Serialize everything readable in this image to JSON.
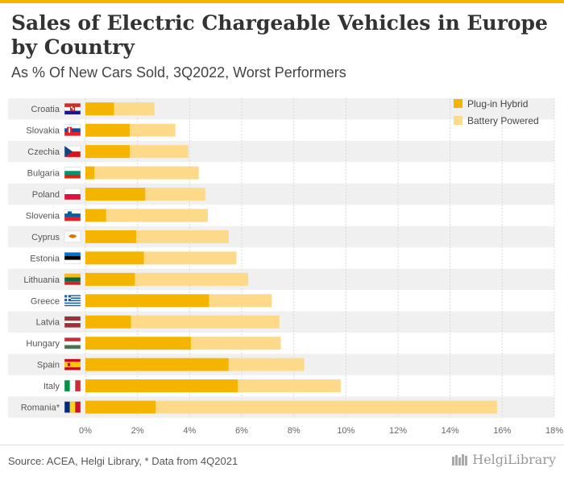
{
  "header": {
    "title": "Sales of Electric Chargeable Vehicles in Europe by Country",
    "subtitle": "As % Of New Cars Sold, 3Q2022, Worst Performers"
  },
  "footer": {
    "source": "Source: ACEA, Helgi Library, * Data from 4Q2021",
    "brand": "HelgiLibrary"
  },
  "colors": {
    "plugin": "#f5b400",
    "battery": "#fdd98a",
    "band": "#f0f0f0"
  },
  "chart_data": {
    "type": "bar",
    "orientation": "horizontal",
    "stacked": true,
    "categories": [
      "Croatia",
      "Slovakia",
      "Czechia",
      "Bulgaria",
      "Poland",
      "Slovenia",
      "Cyprus",
      "Estonia",
      "Lithuania",
      "Greece",
      "Latvia",
      "Hungary",
      "Spain",
      "Italy",
      "Romania*"
    ],
    "series": [
      {
        "name": "Plug-in Hybrid",
        "values": [
          1.1,
          1.7,
          1.7,
          0.35,
          2.3,
          0.8,
          1.95,
          2.25,
          1.9,
          4.75,
          1.75,
          4.05,
          5.5,
          5.85,
          2.7
        ]
      },
      {
        "name": "Battery Powered",
        "values": [
          1.55,
          1.75,
          2.25,
          4.0,
          2.3,
          3.9,
          3.55,
          3.55,
          4.35,
          2.4,
          5.7,
          3.45,
          2.9,
          3.95,
          13.1
        ]
      }
    ],
    "xlim": [
      0,
      18
    ],
    "xticks": [
      "0%",
      "2%",
      "4%",
      "6%",
      "8%",
      "10%",
      "12%",
      "14%",
      "16%",
      "18%"
    ],
    "xtick_values": [
      0,
      2,
      4,
      6,
      8,
      10,
      12,
      14,
      16,
      18
    ],
    "legend": "top-right",
    "flags": [
      "croatia-flag",
      "slovakia-flag",
      "czechia-flag",
      "bulgaria-flag",
      "poland-flag",
      "slovenia-flag",
      "cyprus-flag",
      "estonia-flag",
      "lithuania-flag",
      "greece-flag",
      "latvia-flag",
      "hungary-flag",
      "spain-flag",
      "italy-flag",
      "romania-flag"
    ]
  }
}
